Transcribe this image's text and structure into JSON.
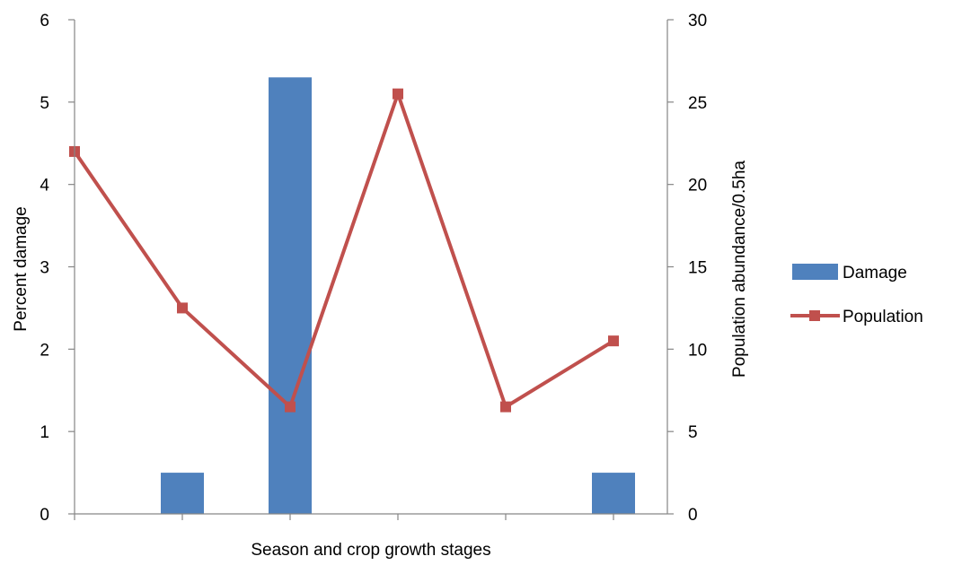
{
  "chart_data": {
    "type": "bar",
    "categories": [
      "",
      "",
      "",
      "",
      "",
      ""
    ],
    "xlabel": "Season and crop growth stages",
    "ylabel": "Percent damage",
    "y2label": "Population abundance/0.5ha",
    "ylim": [
      0,
      6
    ],
    "y2lim": [
      0,
      30
    ],
    "yticks": [
      "0",
      "1",
      "2",
      "3",
      "4",
      "5",
      "6"
    ],
    "y2ticks": [
      "0",
      "5",
      "10",
      "15",
      "20",
      "25",
      "30"
    ],
    "grid": false,
    "legend_position": "right",
    "series": [
      {
        "name": "Damage",
        "type": "bar",
        "axis": "left",
        "color": "#4F81BD",
        "values": [
          0,
          0.5,
          5.3,
          0,
          0,
          0.5
        ]
      },
      {
        "name": "Population",
        "type": "line",
        "axis": "right",
        "color": "#C0504D",
        "marker": "square",
        "values": [
          22,
          12.5,
          6.5,
          25.5,
          6.5,
          10.5
        ]
      }
    ]
  }
}
